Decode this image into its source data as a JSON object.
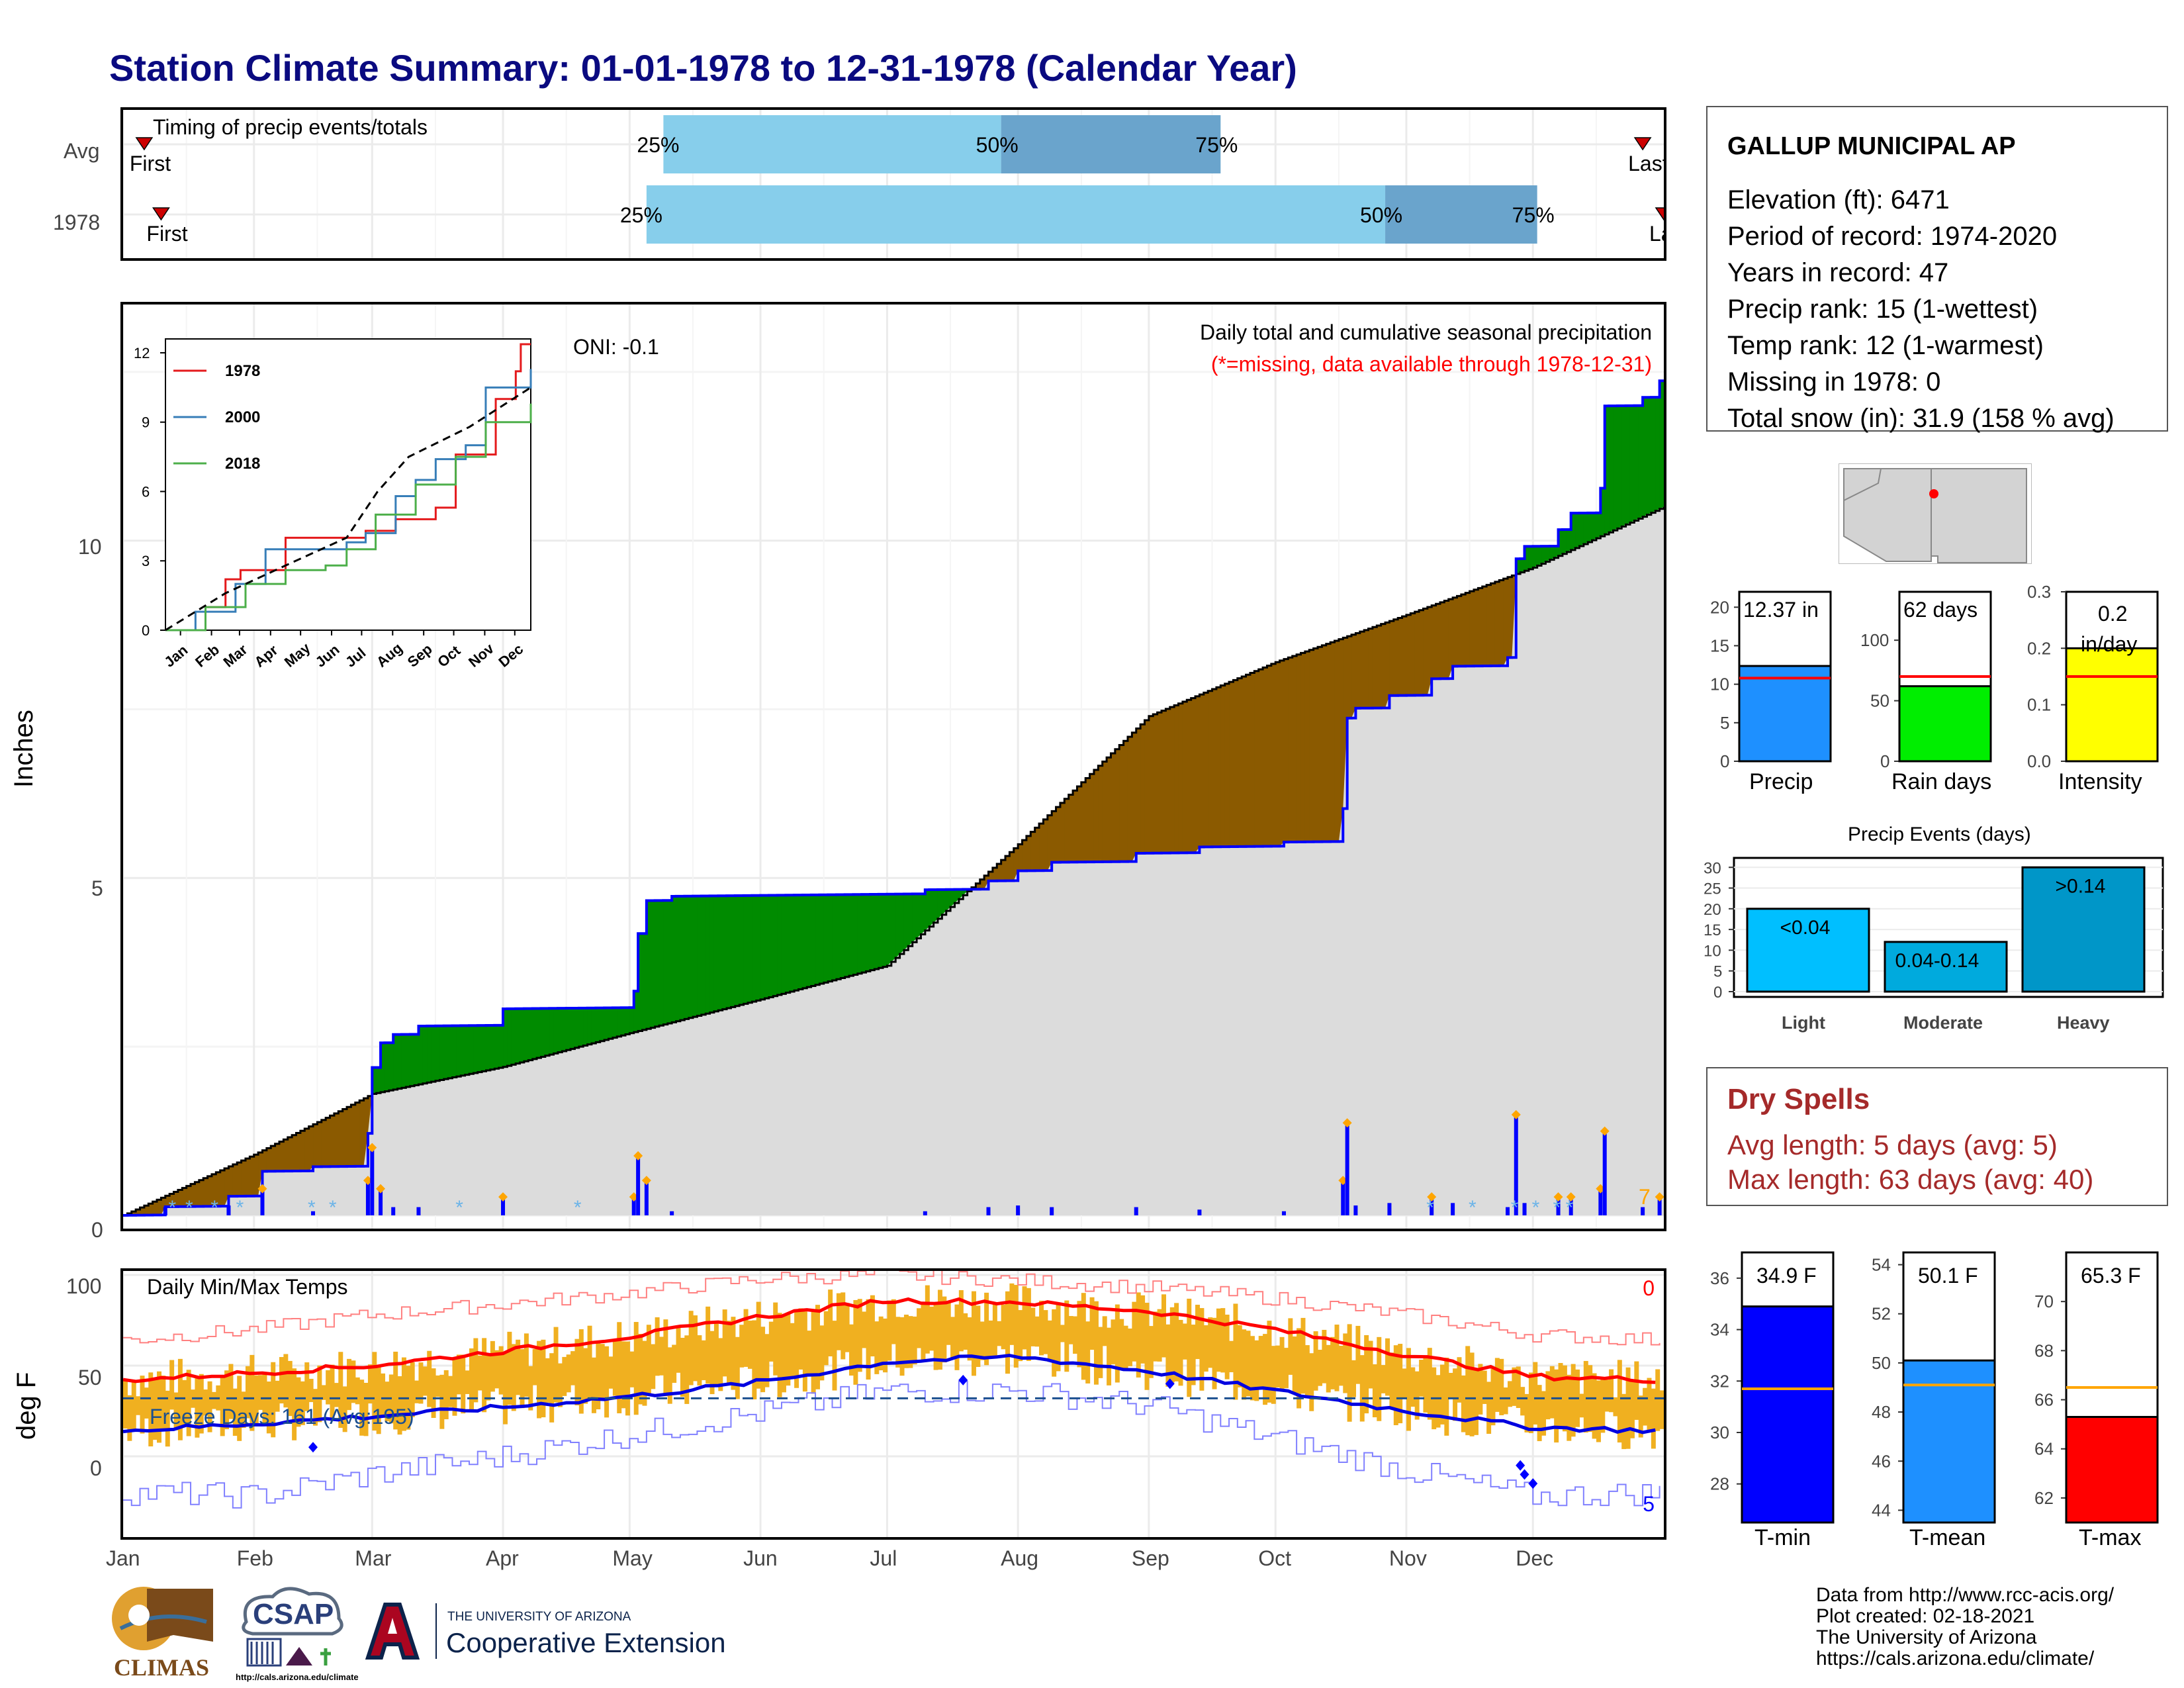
{
  "title": "Station Climate Summary: 01-01-1978 to 12-31-1978 (Calendar Year)",
  "timing": {
    "heading": "Timing of precip events/totals",
    "rows": [
      {
        "label": "Avg",
        "first": "First",
        "last": "Last",
        "p25": "25%",
        "p50": "50%",
        "p75": "75%",
        "first_day": 5,
        "last_day": 360,
        "p25_day": 128,
        "p50_day": 208,
        "p75_day": 260
      },
      {
        "label": "1978",
        "first": "First",
        "last": "La",
        "p25": "25%",
        "p50": "50%",
        "p75": "75%",
        "first_day": 9,
        "last_day": 365,
        "p25_day": 124,
        "p50_day": 299,
        "p75_day": 335
      }
    ]
  },
  "main_chart": {
    "ylabel": "Inches",
    "header": "Daily total and cumulative seasonal precipitation",
    "missing_note": "(*=missing, data available through 1978-12-31)",
    "oni": "ONI: -0.1",
    "count_label": "7",
    "yticks": [
      "0",
      "5",
      "10"
    ],
    "ylim": [
      0,
      13.5
    ]
  },
  "inset": {
    "yticks": [
      "0",
      "3",
      "6",
      "9",
      "12"
    ],
    "xticks": [
      "Jan",
      "Feb",
      "Mar",
      "Apr",
      "May",
      "Jun",
      "Jul",
      "Aug",
      "Sep",
      "Oct",
      "Nov",
      "Dec"
    ],
    "legend": [
      {
        "name": "1978",
        "color": "#e41a1c"
      },
      {
        "name": "2000",
        "color": "#377eb8"
      },
      {
        "name": "2018",
        "color": "#4daf4a"
      }
    ]
  },
  "temp_chart": {
    "ylabel": "deg F",
    "heading": "Daily Min/Max Temps",
    "freeze": "Freeze Days: 161 (Avg:195)",
    "count_hot": "0",
    "count_cold": "5",
    "yticks": [
      "0",
      "50",
      "100"
    ]
  },
  "months": [
    "Jan",
    "Feb",
    "Mar",
    "Apr",
    "May",
    "Jun",
    "Jul",
    "Aug",
    "Sep",
    "Oct",
    "Nov",
    "Dec"
  ],
  "station": {
    "name": "GALLUP MUNICIPAL AP",
    "rows": [
      "Elevation (ft): 6471",
      "Period of record: 1974-2020",
      "Years in record: 47",
      "Precip rank: 15 (1-wettest)",
      "Temp rank: 12 (1-warmest)",
      "Missing in 1978: 0",
      "Total snow (in): 31.9 (158 % avg)"
    ]
  },
  "summary_bars": [
    {
      "name": "Precip",
      "label": "12.37 in",
      "value": 12.37,
      "avg": 10.8,
      "max": 22,
      "ticks": [
        "0",
        "5",
        "10",
        "15",
        "20"
      ],
      "color": "#1e90ff"
    },
    {
      "name": "Rain days",
      "label": "62 days",
      "value": 62,
      "avg": 70,
      "max": 140,
      "ticks": [
        "0",
        "50",
        "100"
      ],
      "color": "#00ee00"
    },
    {
      "name": "Intensity",
      "label": "0.2 in/day",
      "value": 0.2,
      "avg": 0.15,
      "max": 0.3,
      "ticks": [
        "0.0",
        "0.1",
        "0.2",
        "0.3"
      ],
      "color": "#ffff00"
    }
  ],
  "precip_events": {
    "title": "Precip Events (days)",
    "ticks": [
      "0",
      "5",
      "10",
      "15",
      "20",
      "25",
      "30"
    ],
    "bars": [
      {
        "category": "Light",
        "label": "<0.04",
        "value": 20
      },
      {
        "category": "Moderate",
        "label": "0.04-0.14",
        "value": 12
      },
      {
        "category": "Heavy",
        "label": ">0.14",
        "value": 30
      }
    ]
  },
  "dry_spells": {
    "title": "Dry Spells",
    "avg": "Avg length: 5 days (avg: 5)",
    "max": "Max length: 63 days (avg: 40)"
  },
  "temp_bars": [
    {
      "name": "T-min",
      "label": "34.9 F",
      "value": 34.9,
      "avg": 31.7,
      "min": 26.5,
      "max": 37,
      "ticks": [
        "28",
        "30",
        "32",
        "34",
        "36"
      ],
      "color": "#0000ff"
    },
    {
      "name": "T-mean",
      "label": "50.1 F",
      "value": 50.1,
      "avg": 49.1,
      "min": 43.5,
      "max": 54.5,
      "ticks": [
        "44",
        "46",
        "48",
        "50",
        "52",
        "54"
      ],
      "color": "#1e90ff"
    },
    {
      "name": "T-max",
      "label": "65.3 F",
      "value": 65.3,
      "avg": 66.5,
      "min": 61,
      "max": 72,
      "ticks": [
        "62",
        "64",
        "66",
        "68",
        "70"
      ],
      "color": "#ff0000"
    }
  ],
  "footer": {
    "lines": [
      "Data from http://www.rcc-acis.org/",
      "Plot created: 02-18-2021",
      "The University of Arizona",
      "https://cals.arizona.edu/climate/"
    ],
    "climas": "CLIMAS",
    "csap": "CSAP",
    "csap_url": "http://cals.arizona.edu/climate",
    "ua_small": "THE UNIVERSITY OF ARIZONA",
    "ua_big": "Cooperative Extension"
  },
  "chart_data": [
    {
      "type": "area",
      "title": "Daily total and cumulative seasonal precipitation",
      "ylabel": "Inches",
      "ylim": [
        0,
        13.5
      ],
      "x": [
        "Jan 1",
        "Feb 1",
        "Mar 1",
        "Apr 1",
        "May 1",
        "Jun 1",
        "Jul 1",
        "Aug 1",
        "Sep 1",
        "Oct 1",
        "Nov 1",
        "Dec 1",
        "Dec 31"
      ],
      "series": [
        {
          "name": "1978",
          "values": [
            0.0,
            0.4,
            2.2,
            2.6,
            3.9,
            3.95,
            3.95,
            4.3,
            4.8,
            5.3,
            7.6,
            10.0,
            12.37
          ]
        },
        {
          "name": "Avg",
          "values": [
            0.0,
            0.9,
            1.8,
            2.2,
            2.7,
            3.2,
            3.7,
            5.5,
            7.4,
            8.2,
            8.9,
            9.6,
            10.5
          ]
        }
      ]
    },
    {
      "type": "line",
      "title": "Daily Min/Max Temps",
      "ylabel": "deg F",
      "x": [
        "Jan",
        "Feb",
        "Mar",
        "Apr",
        "May",
        "Jun",
        "Jul",
        "Aug",
        "Sep",
        "Oct",
        "Nov",
        "Dec",
        "Dec 31"
      ],
      "series": [
        {
          "name": "Avg max",
          "values": [
            42,
            46,
            50,
            58,
            66,
            77,
            86,
            85,
            80,
            70,
            56,
            44,
            42
          ]
        },
        {
          "name": "Avg min",
          "values": [
            14,
            18,
            22,
            27,
            33,
            41,
            52,
            55,
            47,
            36,
            25,
            16,
            14
          ]
        },
        {
          "name": "Record max",
          "values": [
            64,
            70,
            78,
            84,
            90,
            98,
            100,
            97,
            93,
            87,
            78,
            67,
            64
          ]
        },
        {
          "name": "Record min",
          "values": [
            -20,
            -22,
            -10,
            0,
            12,
            24,
            36,
            36,
            28,
            10,
            -8,
            -22,
            -20
          ]
        }
      ]
    }
  ]
}
